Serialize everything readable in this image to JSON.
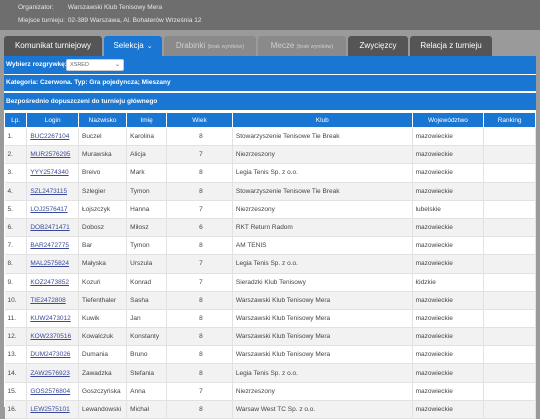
{
  "info": {
    "organizer_label": "Organizator:",
    "organizer_value": "Warszawski Klub Tenisowy Mera",
    "venue_label": "Miejsce turnieju:",
    "venue_value": "02-389 Warszawa, Al. Bohaterów Września 12"
  },
  "tabs": [
    {
      "label": "Komunikat turniejowy",
      "sub": ""
    },
    {
      "label": "Selekcja",
      "sub": ""
    },
    {
      "label": "Drabinki",
      "sub": "(brak wyników)"
    },
    {
      "label": "Mecze",
      "sub": "(brak wyników)"
    },
    {
      "label": "Zwycięzcy",
      "sub": ""
    },
    {
      "label": "Relacja z turnieju",
      "sub": ""
    }
  ],
  "filter": {
    "label": "Wybierz rozgrywkę:",
    "selected": "XSRED"
  },
  "category_text": "Kategoria: Czerwona. Typ: Gra pojedyncza; Mieszany",
  "section_title": "Bezpośrednio dopuszczeni do turnieju głównego",
  "table": {
    "headers": [
      "Lp.",
      "Login",
      "Nazwisko",
      "Imię",
      "Wiek",
      "Klub",
      "Województwo",
      "Ranking"
    ],
    "rows": [
      [
        "1.",
        "BUC2267104",
        "Buczel",
        "Karolina",
        "8",
        "Stowarzyszenie Tenisowe Tie Break",
        "mazowieckie",
        ""
      ],
      [
        "2.",
        "MUR2576295",
        "Murawska",
        "Alicja",
        "7",
        "Niezrzeszony",
        "mazowieckie",
        ""
      ],
      [
        "3.",
        "YYY2574340",
        "Breivo",
        "Mark",
        "8",
        "Legia Tenis Sp. z o.o.",
        "mazowieckie",
        ""
      ],
      [
        "4.",
        "SZL2473115",
        "Szlegier",
        "Tymon",
        "8",
        "Stowarzyszenie Tenisowe Tie Break",
        "mazowieckie",
        ""
      ],
      [
        "5.",
        "LOJ2576417",
        "Łojszczyk",
        "Hanna",
        "7",
        "Niezrzeszony",
        "lubelskie",
        ""
      ],
      [
        "6.",
        "DOB2471471",
        "Dobosz",
        "Miłosz",
        "6",
        "RKT Return Radom",
        "mazowieckie",
        ""
      ],
      [
        "7.",
        "BAR2472775",
        "Bar",
        "Tymon",
        "8",
        "AM TENIS",
        "mazowieckie",
        ""
      ],
      [
        "8.",
        "MAL2575824",
        "Małyska",
        "Urszula",
        "7",
        "Legia Tenis Sp. z o.o.",
        "mazowieckie",
        ""
      ],
      [
        "9.",
        "KOZ2473852",
        "Kozuń",
        "Konrad",
        "7",
        "Sieradzki Klub Tenisowy",
        "łódzkie",
        ""
      ],
      [
        "10.",
        "TIE2472808",
        "Tiefenthaler",
        "Sasha",
        "8",
        "Warszawski Klub Tenisowy Mera",
        "mazowieckie",
        ""
      ],
      [
        "11.",
        "KUW2473012",
        "Kuwik",
        "Jan",
        "8",
        "Warszawski Klub Tenisowy Mera",
        "mazowieckie",
        ""
      ],
      [
        "12.",
        "KOW2370516",
        "Kowalczuk",
        "Konstanty",
        "8",
        "Warszawski Klub Tenisowy Mera",
        "mazowieckie",
        ""
      ],
      [
        "13.",
        "DUM2473026",
        "Dumania",
        "Bruno",
        "8",
        "Warszawski Klub Tenisowy Mera",
        "mazowieckie",
        ""
      ],
      [
        "14.",
        "ZAW2576923",
        "Zawadzka",
        "Stefania",
        "8",
        "Legia Tenis Sp. z o.o.",
        "mazowieckie",
        ""
      ],
      [
        "15.",
        "GOS2576804",
        "Goszczyńska",
        "Anna",
        "7",
        "Niezrzeszony",
        "mazowieckie",
        ""
      ],
      [
        "16.",
        "LEW2575101",
        "Lewandowski",
        "Michał",
        "8",
        "Warsaw West TC Sp. z o.o.",
        "mazowieckie",
        ""
      ]
    ]
  },
  "icons": {
    "dropdown": "chevron-down-icon"
  },
  "colors": {
    "accent": "#1976d2",
    "tab_inactive": "#555555",
    "tab_disabled": "#8a8a8a",
    "link": "#3a4a9a"
  }
}
